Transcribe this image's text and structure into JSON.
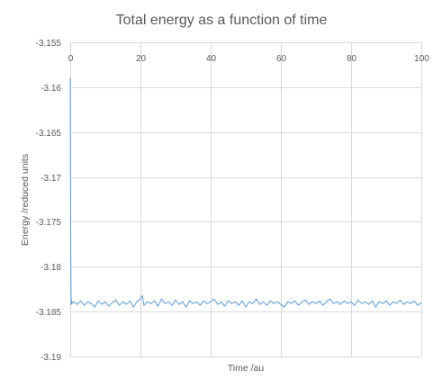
{
  "chart_data": {
    "type": "line",
    "title": "Total energy as a function of time",
    "xlabel": "Time /au",
    "ylabel": "Energy /reduced units",
    "xlim": [
      0,
      100
    ],
    "ylim": [
      -3.19,
      -3.155
    ],
    "x_ticks": [
      0,
      20,
      40,
      60,
      80,
      100
    ],
    "y_ticks": [
      -3.155,
      -3.16,
      -3.165,
      -3.17,
      -3.175,
      -3.18,
      -3.185,
      -3.19
    ],
    "x_tick_labels": [
      "0",
      "20",
      "40",
      "60",
      "80",
      "100"
    ],
    "y_tick_labels": [
      "-3.155",
      "-3.16",
      "-3.165",
      "-3.17",
      "-3.175",
      "-3.18",
      "-3.185",
      "-3.19"
    ],
    "x_axis_position": "top",
    "grid": true,
    "legend": "none",
    "line_color": "#5b9bd5",
    "series": [
      {
        "x": [
          0,
          0.05,
          0.1,
          0.15,
          0.2,
          0.25,
          0.3,
          0.4,
          0.5,
          1,
          2,
          3,
          4,
          5,
          6,
          7,
          8,
          9,
          10,
          11,
          12,
          13,
          14,
          15,
          16,
          17,
          18,
          19,
          20,
          20.5,
          21,
          22,
          23,
          24,
          25,
          26,
          27,
          28,
          29,
          30,
          31,
          32,
          33,
          34,
          35,
          36,
          37,
          38,
          39,
          40,
          41,
          42,
          43,
          44,
          45,
          46,
          47,
          48,
          49,
          50,
          51,
          52,
          53,
          54,
          55,
          56,
          57,
          58,
          59,
          60,
          61,
          62,
          63,
          64,
          65,
          66,
          67,
          68,
          69,
          70,
          71,
          72,
          73,
          74,
          75,
          76,
          77,
          78,
          79,
          80,
          81,
          82,
          83,
          84,
          85,
          86,
          87,
          88,
          89,
          90,
          91,
          92,
          93,
          94,
          95,
          96,
          97,
          98,
          99,
          100
        ],
        "y": [
          -3.159,
          -3.1645,
          -3.1735,
          -3.177,
          -3.181,
          -3.1835,
          -3.1842,
          -3.1838,
          -3.1841,
          -3.1839,
          -3.1842,
          -3.1838,
          -3.1843,
          -3.1839,
          -3.1841,
          -3.1845,
          -3.1838,
          -3.1842,
          -3.1839,
          -3.1844,
          -3.184,
          -3.1837,
          -3.1843,
          -3.1839,
          -3.1842,
          -3.1838,
          -3.1845,
          -3.1839,
          -3.1836,
          -3.1832,
          -3.1843,
          -3.1839,
          -3.1841,
          -3.1838,
          -3.1844,
          -3.1836,
          -3.1841,
          -3.1839,
          -3.1843,
          -3.1837,
          -3.1842,
          -3.1839,
          -3.1845,
          -3.1838,
          -3.1841,
          -3.1839,
          -3.1843,
          -3.1838,
          -3.1841,
          -3.1839,
          -3.1836,
          -3.1842,
          -3.1839,
          -3.1844,
          -3.1838,
          -3.1841,
          -3.1839,
          -3.1843,
          -3.1838,
          -3.1845,
          -3.1839,
          -3.1841,
          -3.1836,
          -3.1842,
          -3.1839,
          -3.1843,
          -3.1838,
          -3.1841,
          -3.1839,
          -3.1842,
          -3.1845,
          -3.1839,
          -3.1841,
          -3.1838,
          -3.1843,
          -3.1839,
          -3.1837,
          -3.1842,
          -3.1839,
          -3.1841,
          -3.1838,
          -3.1843,
          -3.1839,
          -3.1836,
          -3.1841,
          -3.1839,
          -3.1842,
          -3.1838,
          -3.1841,
          -3.1839,
          -3.1843,
          -3.1837,
          -3.1841,
          -3.1839,
          -3.1842,
          -3.1838,
          -3.1845,
          -3.1839,
          -3.1841,
          -3.1838,
          -3.1843,
          -3.1839,
          -3.1841,
          -3.1837,
          -3.1842,
          -3.1839,
          -3.1841,
          -3.1838,
          -3.1843,
          -3.184
        ]
      }
    ]
  }
}
